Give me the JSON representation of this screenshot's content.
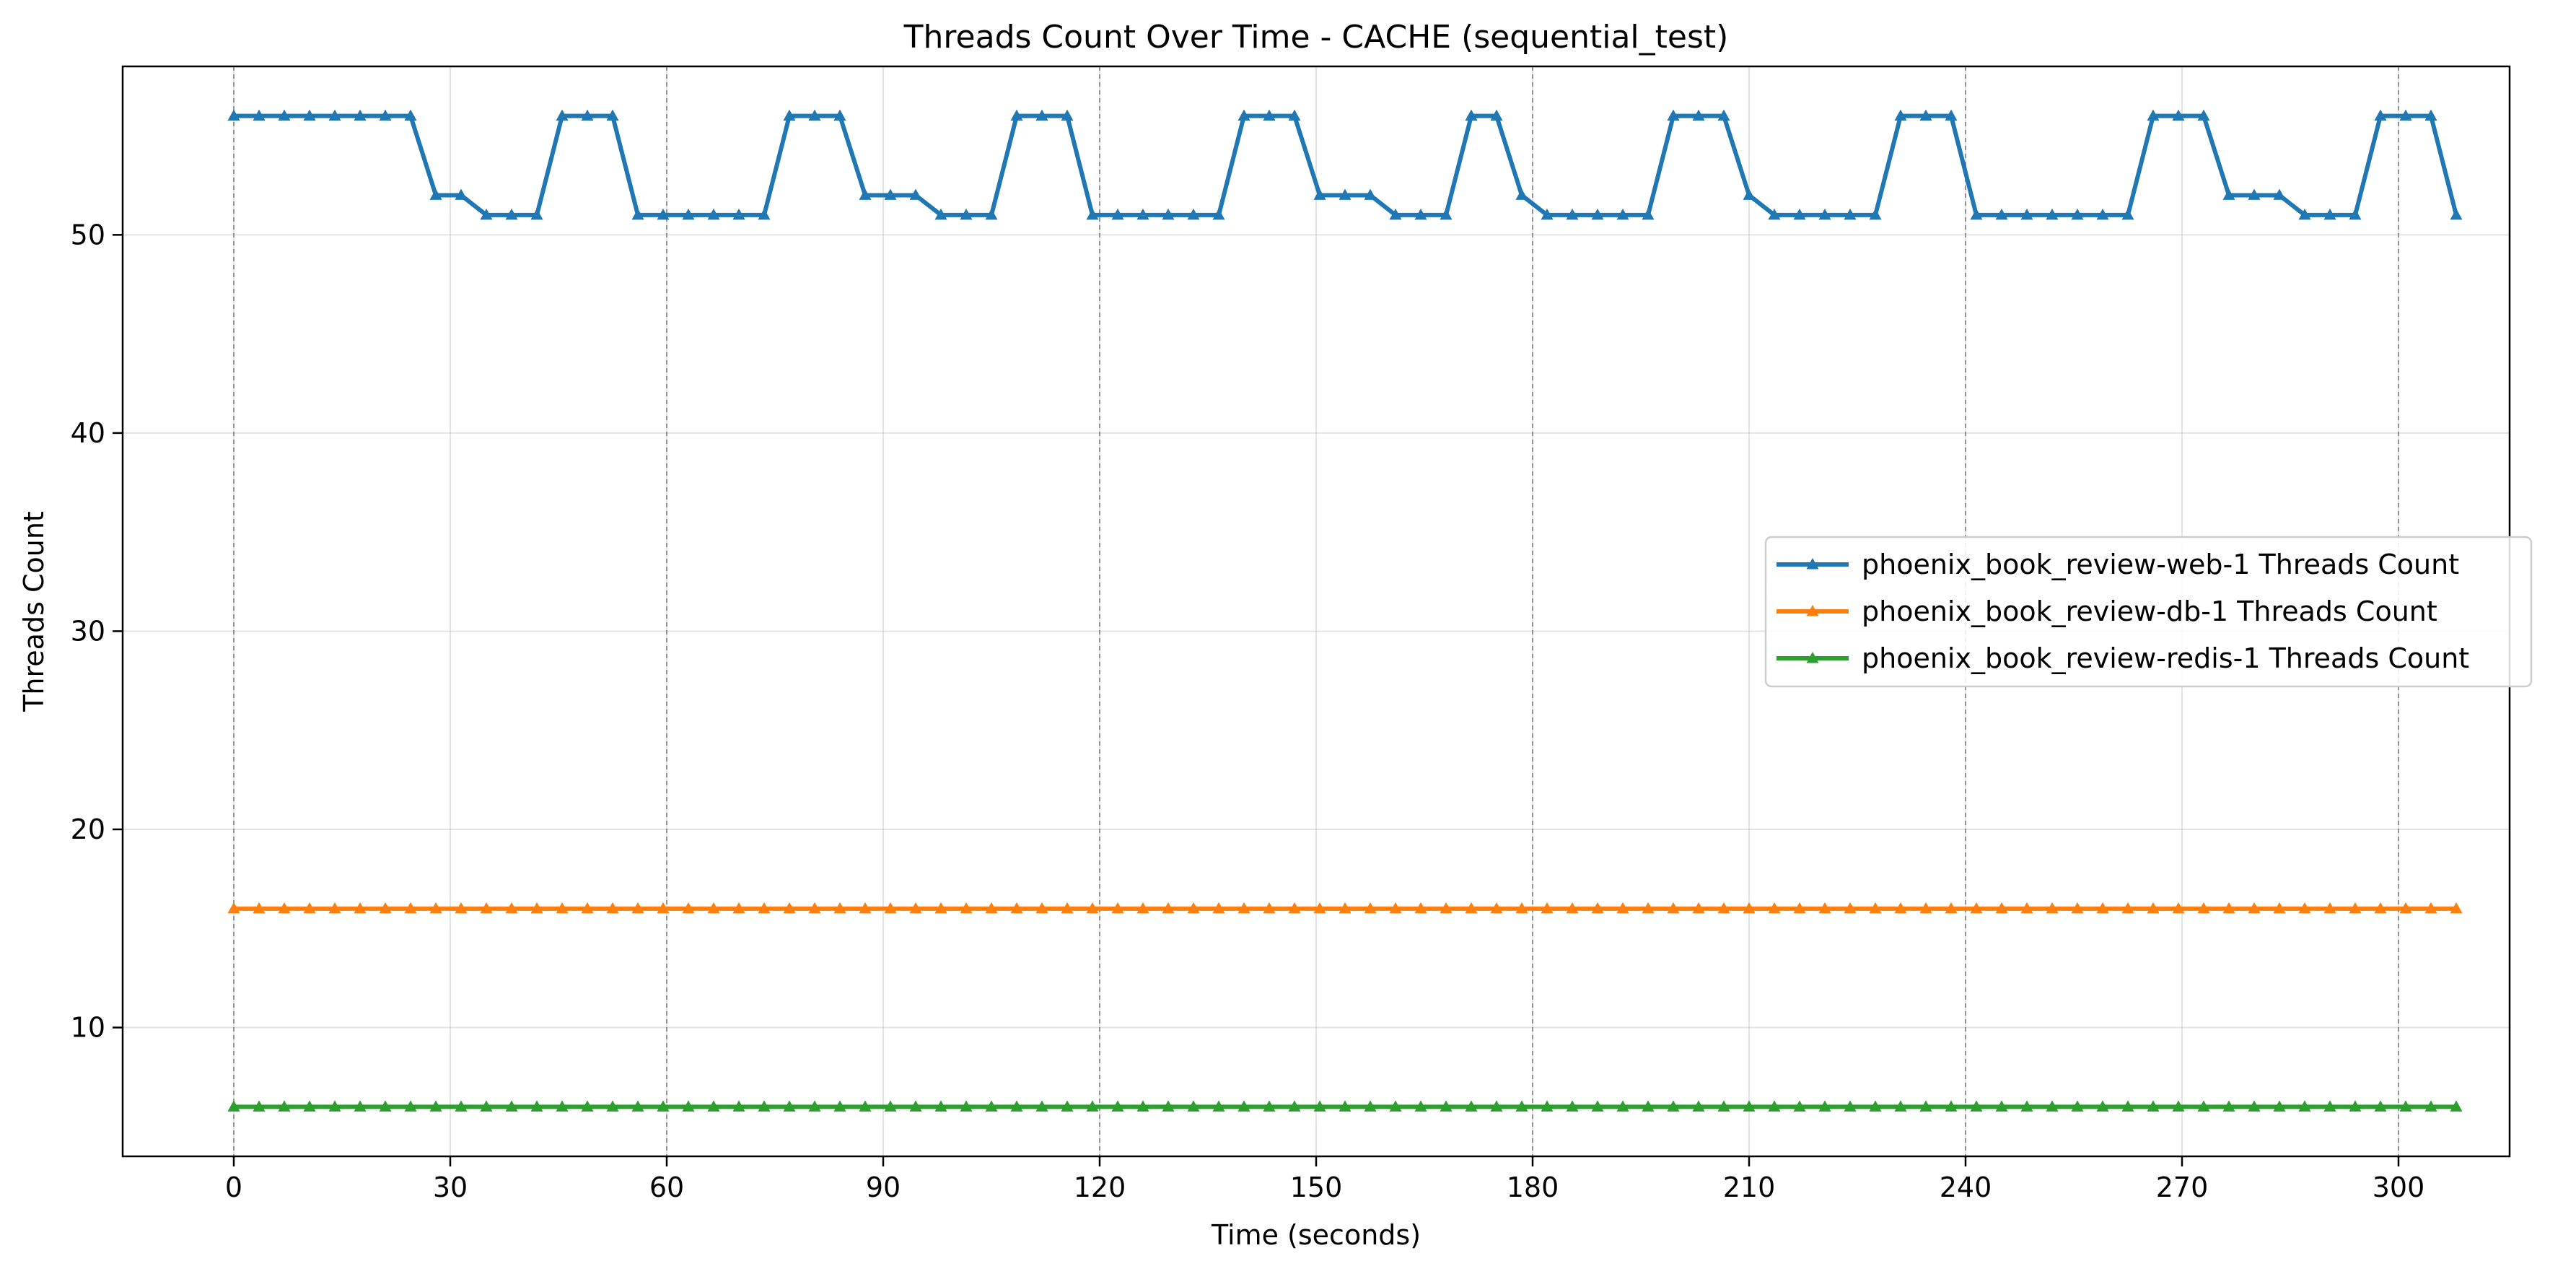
{
  "chart_data": {
    "type": "line",
    "title": "Threads Count Over Time - CACHE (sequential_test)",
    "xlabel": "Time (seconds)",
    "ylabel": "Threads Count",
    "xlim": [
      -15.4,
      315.4
    ],
    "ylim": [
      3.5,
      58.5
    ],
    "xticks": [
      0,
      30,
      60,
      90,
      120,
      150,
      180,
      210,
      240,
      270,
      300
    ],
    "yticks": [
      10,
      20,
      30,
      40,
      50
    ],
    "vlines": [
      0,
      60,
      120,
      180,
      240,
      300
    ],
    "grid": true,
    "legend_position": "right",
    "x": [
      0,
      3.5,
      7,
      10.5,
      14,
      17.5,
      21,
      24.5,
      28,
      31.5,
      35,
      38.5,
      42,
      45.5,
      49,
      52.5,
      56,
      59.5,
      63,
      66.5,
      70,
      73.5,
      77,
      80.5,
      84,
      87.5,
      91,
      94.5,
      98,
      101.5,
      105,
      108.5,
      112,
      115.5,
      119,
      122.5,
      126,
      129.5,
      133,
      136.5,
      140,
      143.5,
      147,
      150.5,
      154,
      157.5,
      161,
      164.5,
      168,
      171.5,
      175,
      178.5,
      182,
      185.5,
      189,
      192.5,
      196,
      199.5,
      203,
      206.5,
      210,
      213.5,
      217,
      220.5,
      224,
      227.5,
      231,
      234.5,
      238,
      241.5,
      245,
      248.5,
      252,
      255.5,
      259,
      262.5,
      266,
      269.5,
      273,
      276.5,
      280,
      283.5,
      287,
      290.5,
      294,
      297.5,
      301,
      304.5,
      308
    ],
    "series": [
      {
        "name": "phoenix_book_review-web-1 Threads Count",
        "color": "#1f77b4",
        "values": [
          56,
          56,
          56,
          56,
          56,
          56,
          56,
          56,
          52,
          52,
          51,
          51,
          51,
          56,
          56,
          56,
          51,
          51,
          51,
          51,
          51,
          51,
          56,
          56,
          56,
          52,
          52,
          52,
          51,
          51,
          51,
          56,
          56,
          56,
          51,
          51,
          51,
          51,
          51,
          51,
          56,
          56,
          56,
          52,
          52,
          52,
          51,
          51,
          51,
          56,
          56,
          52,
          51,
          51,
          51,
          51,
          51,
          56,
          56,
          56,
          52,
          51,
          51,
          51,
          51,
          51,
          56,
          56,
          56,
          51,
          51,
          51,
          51,
          51,
          51,
          51,
          56,
          56,
          56,
          52,
          52,
          52,
          51,
          51,
          51,
          56,
          56,
          56,
          51
        ]
      },
      {
        "name": "phoenix_book_review-db-1 Threads Count",
        "color": "#ff7f0e",
        "values": [
          16,
          16,
          16,
          16,
          16,
          16,
          16,
          16,
          16,
          16,
          16,
          16,
          16,
          16,
          16,
          16,
          16,
          16,
          16,
          16,
          16,
          16,
          16,
          16,
          16,
          16,
          16,
          16,
          16,
          16,
          16,
          16,
          16,
          16,
          16,
          16,
          16,
          16,
          16,
          16,
          16,
          16,
          16,
          16,
          16,
          16,
          16,
          16,
          16,
          16,
          16,
          16,
          16,
          16,
          16,
          16,
          16,
          16,
          16,
          16,
          16,
          16,
          16,
          16,
          16,
          16,
          16,
          16,
          16,
          16,
          16,
          16,
          16,
          16,
          16,
          16,
          16,
          16,
          16,
          16,
          16,
          16,
          16,
          16,
          16,
          16,
          16,
          16,
          16
        ]
      },
      {
        "name": "phoenix_book_review-redis-1 Threads Count",
        "color": "#2ca02c",
        "values": [
          6,
          6,
          6,
          6,
          6,
          6,
          6,
          6,
          6,
          6,
          6,
          6,
          6,
          6,
          6,
          6,
          6,
          6,
          6,
          6,
          6,
          6,
          6,
          6,
          6,
          6,
          6,
          6,
          6,
          6,
          6,
          6,
          6,
          6,
          6,
          6,
          6,
          6,
          6,
          6,
          6,
          6,
          6,
          6,
          6,
          6,
          6,
          6,
          6,
          6,
          6,
          6,
          6,
          6,
          6,
          6,
          6,
          6,
          6,
          6,
          6,
          6,
          6,
          6,
          6,
          6,
          6,
          6,
          6,
          6,
          6,
          6,
          6,
          6,
          6,
          6,
          6,
          6,
          6,
          6,
          6,
          6,
          6,
          6,
          6,
          6,
          6,
          6,
          6
        ]
      }
    ]
  }
}
